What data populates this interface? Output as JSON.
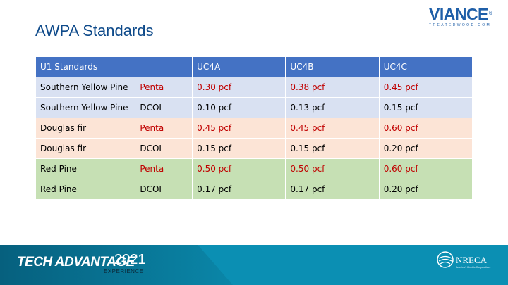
{
  "header": {
    "title": "AWPA Standards"
  },
  "logo": {
    "wordmark": "VIANCE",
    "tagline": "TREATEDWOOD.COM"
  },
  "table": {
    "header": [
      "U1 Standards",
      "",
      "UC4A",
      "UC4B",
      "UC4C"
    ],
    "rows": [
      {
        "cells": [
          "Southern Yellow Pine",
          "Penta",
          "0.30 pcf",
          "0.38 pcf",
          "0.45 pcf"
        ],
        "bg": "#d9e1f2",
        "red": true
      },
      {
        "cells": [
          "Southern Yellow Pine",
          "DCOI",
          "0.10 pcf",
          "0.13 pcf",
          "0.15 pcf"
        ],
        "bg": "#d9e1f2",
        "red": false
      },
      {
        "cells": [
          "Douglas fir",
          "Penta",
          "0.45 pcf",
          "0.45 pcf",
          "0.60 pcf"
        ],
        "bg": "#fce4d6",
        "red": true
      },
      {
        "cells": [
          "Douglas fir",
          "DCOI",
          "0.15 pcf",
          "0.15 pcf",
          "0.20 pcf"
        ],
        "bg": "#fce4d6",
        "red": false
      },
      {
        "cells": [
          "Red Pine",
          "Penta",
          "0.50 pcf",
          "0.50 pcf",
          "0.60 pcf"
        ],
        "bg": "#c6e0b4",
        "red": true
      },
      {
        "cells": [
          "Red Pine",
          "DCOI",
          "0.17 pcf",
          "0.17 pcf",
          "0.20 pcf"
        ],
        "bg": "#c6e0b4",
        "red": false
      }
    ]
  },
  "footer": {
    "event": "TECH ADVANTAGE",
    "year": "2021",
    "subtitle": "EXPERIENCE",
    "org": "NRECA",
    "org_sub": "America's Electric Cooperatives"
  },
  "colors": {
    "header_bg": "#4472c4",
    "accent_red": "#c00000",
    "footer_bg": "#0b8fb3"
  }
}
